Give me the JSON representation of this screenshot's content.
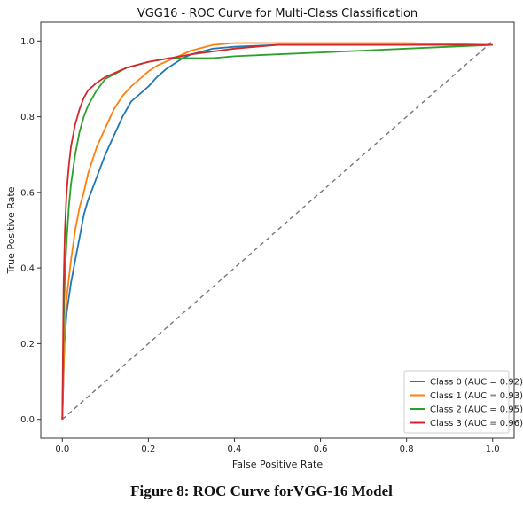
{
  "chart_data": {
    "type": "line",
    "title": "VGG16 - ROC Curve for Multi-Class Classification",
    "xlabel": "False Positive Rate",
    "ylabel": "True Positive Rate",
    "xlim": [
      -0.05,
      1.05
    ],
    "ylim": [
      -0.05,
      1.05
    ],
    "xticks": [
      0.0,
      0.2,
      0.4,
      0.6,
      0.8,
      1.0
    ],
    "yticks": [
      0.0,
      0.2,
      0.4,
      0.6,
      0.8,
      1.0
    ],
    "grid": false,
    "legend_position": "bottom-right",
    "series": [
      {
        "name": "Class 0 (AUC = 0.92)",
        "color": "#1f77b4",
        "x": [
          0,
          0.005,
          0.01,
          0.02,
          0.03,
          0.04,
          0.05,
          0.06,
          0.08,
          0.1,
          0.12,
          0.14,
          0.16,
          0.18,
          0.2,
          0.22,
          0.24,
          0.26,
          0.28,
          0.3,
          0.35,
          0.4,
          0.5,
          0.6,
          0.8,
          1.0
        ],
        "y": [
          0,
          0.2,
          0.28,
          0.36,
          0.42,
          0.48,
          0.54,
          0.58,
          0.64,
          0.7,
          0.75,
          0.8,
          0.84,
          0.86,
          0.88,
          0.905,
          0.925,
          0.94,
          0.955,
          0.965,
          0.98,
          0.985,
          0.99,
          0.99,
          0.99,
          0.99
        ]
      },
      {
        "name": "Class 1 (AUC = 0.93)",
        "color": "#ff7f0e",
        "x": [
          0,
          0.005,
          0.01,
          0.02,
          0.03,
          0.04,
          0.05,
          0.06,
          0.08,
          0.1,
          0.12,
          0.14,
          0.16,
          0.18,
          0.2,
          0.22,
          0.25,
          0.3,
          0.35,
          0.4,
          0.5,
          0.6,
          0.8,
          1.0
        ],
        "y": [
          0,
          0.22,
          0.32,
          0.42,
          0.5,
          0.56,
          0.6,
          0.65,
          0.72,
          0.77,
          0.82,
          0.855,
          0.88,
          0.9,
          0.92,
          0.935,
          0.95,
          0.975,
          0.99,
          0.995,
          0.995,
          0.995,
          0.995,
          0.99
        ]
      },
      {
        "name": "Class 2 (AUC = 0.95)",
        "color": "#2ca02c",
        "x": [
          0,
          0.003,
          0.006,
          0.01,
          0.015,
          0.02,
          0.03,
          0.04,
          0.05,
          0.06,
          0.08,
          0.1,
          0.15,
          0.2,
          0.25,
          0.3,
          0.35,
          0.4,
          0.5,
          0.6,
          0.7,
          0.8,
          0.9,
          1.0
        ],
        "y": [
          0,
          0.25,
          0.38,
          0.47,
          0.56,
          0.62,
          0.7,
          0.76,
          0.8,
          0.83,
          0.87,
          0.9,
          0.93,
          0.945,
          0.955,
          0.955,
          0.955,
          0.96,
          0.965,
          0.97,
          0.975,
          0.98,
          0.985,
          0.99
        ]
      },
      {
        "name": "Class 3 (AUC = 0.96)",
        "color": "#d62728",
        "x": [
          0,
          0.003,
          0.006,
          0.01,
          0.015,
          0.02,
          0.03,
          0.04,
          0.05,
          0.06,
          0.08,
          0.1,
          0.12,
          0.15,
          0.2,
          0.25,
          0.3,
          0.4,
          0.5,
          0.6,
          0.8,
          1.0
        ],
        "y": [
          0,
          0.35,
          0.5,
          0.6,
          0.67,
          0.72,
          0.78,
          0.82,
          0.85,
          0.87,
          0.89,
          0.905,
          0.915,
          0.93,
          0.945,
          0.955,
          0.965,
          0.98,
          0.99,
          0.99,
          0.99,
          0.99
        ]
      }
    ],
    "reference_line": {
      "x": [
        0,
        1
      ],
      "y": [
        0,
        1
      ],
      "style": "dashed",
      "color": "#777777"
    }
  },
  "caption": "Figure 8: ROC Curve forVGG-16 Model"
}
